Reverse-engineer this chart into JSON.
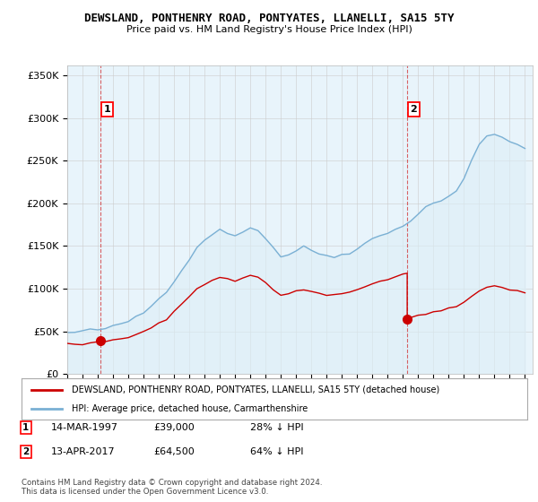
{
  "title": "DEWSLAND, PONTHENRY ROAD, PONTYATES, LLANELLI, SA15 5TY",
  "subtitle": "Price paid vs. HM Land Registry's House Price Index (HPI)",
  "ylabel_ticks": [
    "£0",
    "£50K",
    "£100K",
    "£150K",
    "£200K",
    "£250K",
    "£300K",
    "£350K"
  ],
  "ylim": [
    0,
    362000
  ],
  "xlim_start": 1995.0,
  "xlim_end": 2025.5,
  "sale1_date": 1997.2,
  "sale1_price": 39000,
  "sale1_label": "1",
  "sale2_date": 2017.28,
  "sale2_price": 64500,
  "sale2_label": "2",
  "red_color": "#cc0000",
  "blue_color": "#7ab0d4",
  "blue_fill": "#ddeef7",
  "grid_color": "#cccccc",
  "background_color": "#ffffff",
  "plot_bg_color": "#e8f4fb",
  "legend_label_red": "DEWSLAND, PONTHENRY ROAD, PONTYATES, LLANELLI, SA15 5TY (detached house)",
  "legend_label_blue": "HPI: Average price, detached house, Carmarthenshire",
  "annotation1_date": "14-MAR-1997",
  "annotation1_price": "£39,000",
  "annotation1_hpi": "28% ↓ HPI",
  "annotation2_date": "13-APR-2017",
  "annotation2_price": "£64,500",
  "annotation2_hpi": "64% ↓ HPI",
  "footnote": "Contains HM Land Registry data © Crown copyright and database right 2024.\nThis data is licensed under the Open Government Licence v3.0.",
  "hpi_years": [
    1995.0,
    1995.5,
    1996.0,
    1996.5,
    1997.0,
    1997.5,
    1998.0,
    1998.5,
    1999.0,
    1999.5,
    2000.0,
    2000.5,
    2001.0,
    2001.5,
    2002.0,
    2002.5,
    2003.0,
    2003.5,
    2004.0,
    2004.5,
    2005.0,
    2005.5,
    2006.0,
    2006.5,
    2007.0,
    2007.5,
    2008.0,
    2008.5,
    2009.0,
    2009.5,
    2010.0,
    2010.5,
    2011.0,
    2011.5,
    2012.0,
    2012.5,
    2013.0,
    2013.5,
    2014.0,
    2014.5,
    2015.0,
    2015.5,
    2016.0,
    2016.5,
    2017.0,
    2017.5,
    2018.0,
    2018.5,
    2019.0,
    2019.5,
    2020.0,
    2020.5,
    2021.0,
    2021.5,
    2022.0,
    2022.5,
    2023.0,
    2023.5,
    2024.0,
    2024.5,
    2025.0
  ],
  "hpi_vals": [
    48000,
    49000,
    50000,
    51000,
    52000,
    53500,
    55000,
    58000,
    62000,
    67000,
    72000,
    80000,
    88000,
    98000,
    110000,
    122000,
    135000,
    148000,
    158000,
    165000,
    168000,
    165000,
    162000,
    168000,
    172000,
    168000,
    160000,
    148000,
    138000,
    140000,
    145000,
    148000,
    145000,
    142000,
    138000,
    138000,
    140000,
    143000,
    148000,
    153000,
    158000,
    162000,
    165000,
    170000,
    175000,
    180000,
    188000,
    195000,
    200000,
    205000,
    208000,
    215000,
    230000,
    250000,
    268000,
    278000,
    282000,
    278000,
    272000,
    268000,
    265000
  ],
  "red_years": [
    1995.0,
    1995.5,
    1996.0,
    1996.5,
    1997.0,
    1997.5,
    1998.0,
    1998.5,
    1999.0,
    1999.5,
    2000.0,
    2000.5,
    2001.0,
    2001.5,
    2002.0,
    2002.5,
    2003.0,
    2003.5,
    2004.0,
    2004.5,
    2005.0,
    2005.5,
    2006.0,
    2006.5,
    2007.0,
    2007.5,
    2008.0,
    2008.5,
    2009.0,
    2009.5,
    2010.0,
    2010.5,
    2011.0,
    2011.5,
    2012.0,
    2012.5,
    2013.0,
    2013.5,
    2014.0,
    2014.5,
    2015.0,
    2015.5,
    2016.0,
    2016.5,
    2017.0,
    2017.28,
    2017.28,
    2017.5,
    2018.0,
    2018.5,
    2019.0,
    2019.5,
    2020.0,
    2020.5,
    2021.0,
    2021.5,
    2022.0,
    2022.5,
    2023.0,
    2023.5,
    2024.0,
    2024.5,
    2025.0
  ],
  "red_vals": [
    36000,
    35500,
    35000,
    36000,
    37000,
    38000,
    39500,
    41000,
    43000,
    46000,
    49000,
    54000,
    59000,
    65000,
    73000,
    82000,
    91000,
    100000,
    106000,
    110000,
    113000,
    111000,
    109000,
    113000,
    116000,
    113000,
    107000,
    99000,
    92000,
    94000,
    97000,
    99000,
    97000,
    95000,
    93000,
    93000,
    94000,
    96000,
    99000,
    103000,
    106000,
    109000,
    111000,
    114000,
    117000,
    117000,
    64500,
    66000,
    69000,
    71000,
    73000,
    74000,
    76000,
    79000,
    84000,
    91000,
    98000,
    101000,
    103000,
    101000,
    99000,
    97000,
    96000
  ]
}
